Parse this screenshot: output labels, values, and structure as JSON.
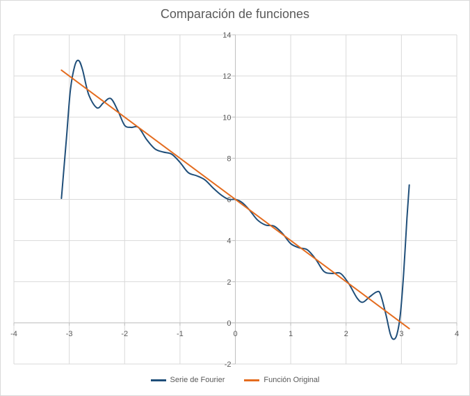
{
  "chart_data": {
    "type": "line",
    "title": "Comparación de funciones",
    "xlabel": "",
    "ylabel": "",
    "xlim": [
      -4,
      4
    ],
    "ylim": [
      -2,
      14
    ],
    "x_ticks": [
      -4,
      -3,
      -2,
      -1,
      0,
      1,
      2,
      3,
      4
    ],
    "y_ticks": [
      -2,
      0,
      2,
      4,
      6,
      8,
      10,
      12,
      14
    ],
    "grid": true,
    "legend_position": "bottom",
    "series": [
      {
        "name": "Serie de Fourier",
        "color": "#1f4e79",
        "x": [
          -3.1416,
          -3.05,
          -2.98,
          -2.9,
          -2.83,
          -2.76,
          -2.65,
          -2.5,
          -2.38,
          -2.25,
          -2.12,
          -2.0,
          -1.88,
          -1.75,
          -1.6,
          -1.45,
          -1.3,
          -1.15,
          -1.0,
          -0.85,
          -0.7,
          -0.55,
          -0.4,
          -0.25,
          -0.12,
          0.0,
          0.12,
          0.25,
          0.4,
          0.55,
          0.7,
          0.85,
          1.0,
          1.15,
          1.3,
          1.45,
          1.6,
          1.75,
          1.9,
          2.05,
          2.2,
          2.3,
          2.42,
          2.55,
          2.62,
          2.72,
          2.8,
          2.86,
          2.92,
          2.98,
          3.04,
          3.1,
          3.1416
        ],
        "y": [
          6.05,
          9.0,
          11.3,
          12.5,
          12.75,
          12.3,
          11.1,
          10.45,
          10.7,
          10.9,
          10.3,
          9.6,
          9.5,
          9.5,
          8.9,
          8.45,
          8.3,
          8.2,
          7.8,
          7.3,
          7.15,
          6.95,
          6.55,
          6.2,
          6.0,
          6.0,
          5.85,
          5.5,
          5.0,
          4.75,
          4.7,
          4.35,
          3.85,
          3.65,
          3.55,
          3.1,
          2.5,
          2.4,
          2.4,
          1.9,
          1.2,
          1.0,
          1.25,
          1.5,
          1.4,
          0.4,
          -0.55,
          -0.8,
          -0.55,
          0.4,
          2.4,
          5.1,
          6.7
        ]
      },
      {
        "name": "Función Original",
        "color": "#e46c1f",
        "x": [
          -3.1416,
          3.1416
        ],
        "y": [
          12.28,
          -0.28
        ]
      }
    ]
  }
}
